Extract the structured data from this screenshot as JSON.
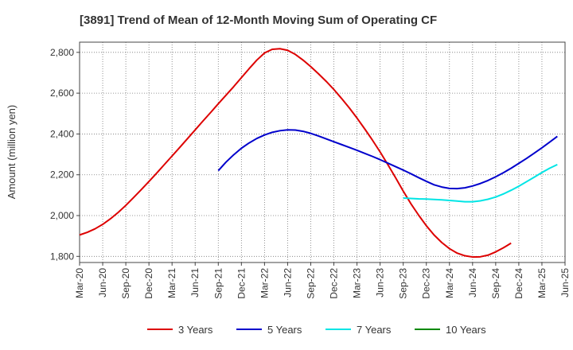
{
  "chart_data": {
    "type": "line",
    "title": "[3891]  Trend of Mean of 12-Month Moving Sum of Operating CF",
    "ylabel": "Amount (million yen)",
    "xlabel": "",
    "ylim": [
      1770,
      2850
    ],
    "yticks": [
      1800,
      2000,
      2200,
      2400,
      2600,
      2800
    ],
    "ytick_labels": [
      "1,800",
      "2,000",
      "2,200",
      "2,400",
      "2,600",
      "2,800"
    ],
    "x_start": "Mar-20",
    "x_months_span": 63,
    "xtick_labels": [
      "Mar-20",
      "Jun-20",
      "Sep-20",
      "Dec-20",
      "Mar-21",
      "Jun-21",
      "Sep-21",
      "Dec-21",
      "Mar-22",
      "Jun-22",
      "Sep-22",
      "Dec-22",
      "Mar-23",
      "Jun-23",
      "Sep-23",
      "Dec-23",
      "Mar-24",
      "Jun-24",
      "Sep-24",
      "Dec-24",
      "Mar-25",
      "Jun-25"
    ],
    "grid": true,
    "legend_position": "bottom",
    "series": [
      {
        "name": "3 Years",
        "color": "#dd0000",
        "start_month": 0,
        "values": [
          1905,
          1918,
          1935,
          1957,
          1984,
          2015,
          2050,
          2088,
          2127,
          2167,
          2208,
          2250,
          2292,
          2334,
          2377,
          2420,
          2463,
          2505,
          2548,
          2590,
          2632,
          2676,
          2720,
          2762,
          2797,
          2815,
          2818,
          2810,
          2790,
          2762,
          2730,
          2695,
          2658,
          2618,
          2574,
          2528,
          2478,
          2425,
          2370,
          2312,
          2250,
          2186,
          2120,
          2058,
          2002,
          1950,
          1905,
          1868,
          1838,
          1816,
          1803,
          1797,
          1798,
          1806,
          1822,
          1842,
          1865
        ]
      },
      {
        "name": "5 Years",
        "color": "#0000cc",
        "start_month": 18,
        "values": [
          2220,
          2262,
          2298,
          2330,
          2356,
          2378,
          2395,
          2408,
          2416,
          2420,
          2419,
          2413,
          2403,
          2390,
          2376,
          2362,
          2348,
          2334,
          2320,
          2305,
          2290,
          2274,
          2257,
          2240,
          2223,
          2205,
          2186,
          2168,
          2151,
          2140,
          2133,
          2132,
          2136,
          2145,
          2157,
          2172,
          2190,
          2210,
          2232,
          2256,
          2280,
          2306,
          2332,
          2360,
          2388
        ]
      },
      {
        "name": "7 Years",
        "color": "#00e5e5",
        "start_month": 42,
        "values": [
          2086,
          2084,
          2082,
          2081,
          2079,
          2077,
          2074,
          2071,
          2068,
          2068,
          2072,
          2080,
          2091,
          2106,
          2124,
          2144,
          2166,
          2188,
          2211,
          2232,
          2250
        ]
      },
      {
        "name": "10 Years",
        "color": "#008800",
        "start_month": 0,
        "values": []
      }
    ]
  }
}
